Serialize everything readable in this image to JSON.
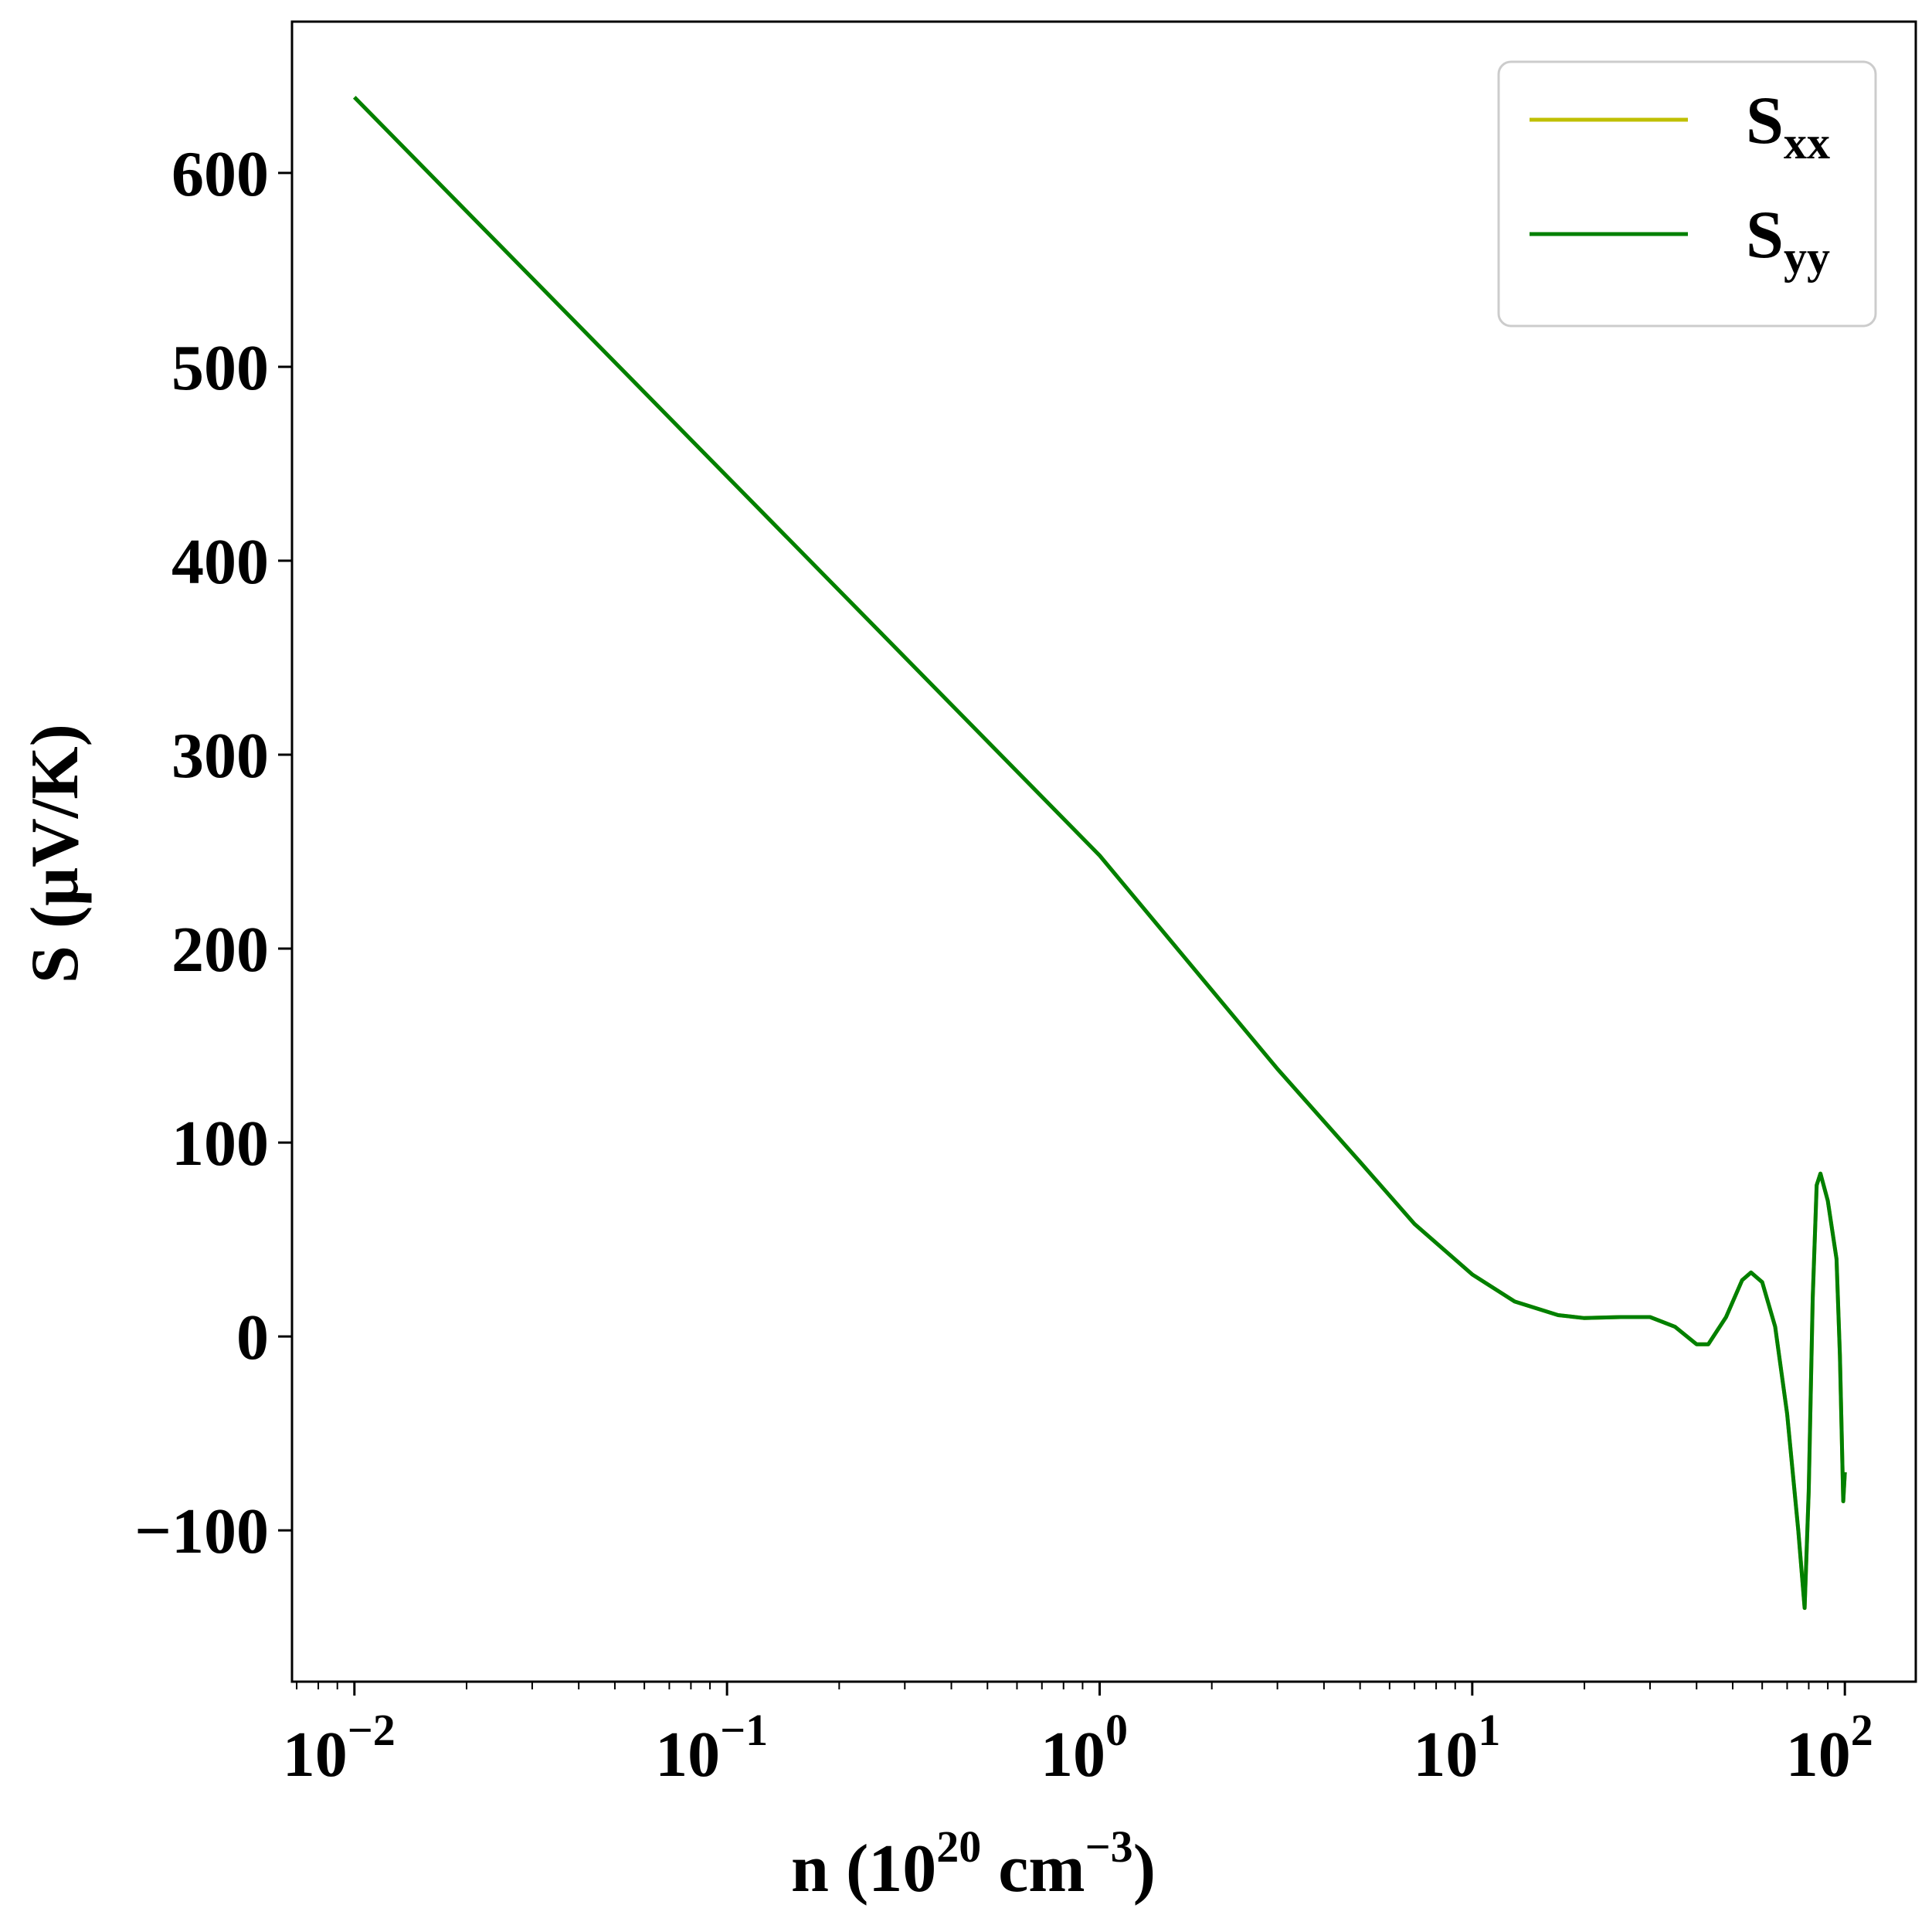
{
  "chart_data": {
    "type": "line",
    "xscale": "log",
    "xlim": [
      0.0068,
      155
    ],
    "ylim": [
      -178,
      678
    ],
    "grid": false,
    "legend_position": "top-right",
    "xlabel": {
      "base": "n (10",
      "sup1": "20",
      "mid": " cm",
      "sup2": "−3",
      "end": ")"
    },
    "ylabel": "S (μV/K)",
    "x_major_ticks": [
      {
        "value": 0.01,
        "base": "10",
        "exp": "−2"
      },
      {
        "value": 0.1,
        "base": "10",
        "exp": "−1"
      },
      {
        "value": 1,
        "base": "10",
        "exp": "0"
      },
      {
        "value": 10,
        "base": "10",
        "exp": "1"
      },
      {
        "value": 100,
        "base": "10",
        "exp": "2"
      }
    ],
    "y_ticks": [
      {
        "value": -100,
        "label": "−100"
      },
      {
        "value": 0,
        "label": "0"
      },
      {
        "value": 100,
        "label": "100"
      },
      {
        "value": 200,
        "label": "200"
      },
      {
        "value": 300,
        "label": "300"
      },
      {
        "value": 400,
        "label": "400"
      },
      {
        "value": 500,
        "label": "500"
      },
      {
        "value": 600,
        "label": "600"
      }
    ],
    "series": [
      {
        "name": "S",
        "sub": "xx",
        "color": "#bfbf00",
        "points": [
          [
            0.01,
            639
          ],
          [
            1,
            248
          ],
          [
            3,
            138
          ],
          [
            5,
            90
          ],
          [
            7,
            58
          ],
          [
            10,
            32
          ],
          [
            13,
            18
          ],
          [
            17,
            11
          ],
          [
            20,
            9.5
          ],
          [
            25,
            10
          ],
          [
            30,
            10
          ],
          [
            35,
            5
          ],
          [
            40,
            -4
          ],
          [
            43,
            -4
          ],
          [
            48,
            10
          ],
          [
            53,
            29
          ],
          [
            56,
            33
          ],
          [
            60,
            28
          ],
          [
            65,
            5
          ],
          [
            70,
            -40
          ],
          [
            75,
            -100
          ],
          [
            78,
            -140
          ],
          [
            80,
            -80
          ],
          [
            82,
            20
          ],
          [
            84,
            78
          ],
          [
            86,
            84
          ],
          [
            90,
            70
          ],
          [
            95,
            40
          ],
          [
            97,
            -10
          ],
          [
            99,
            -85
          ],
          [
            100,
            -70
          ]
        ]
      },
      {
        "name": "S",
        "sub": "yy",
        "color": "#008000",
        "points": [
          [
            0.01,
            639
          ],
          [
            1,
            248
          ],
          [
            3,
            138
          ],
          [
            5,
            90
          ],
          [
            7,
            58
          ],
          [
            10,
            32
          ],
          [
            13,
            18
          ],
          [
            17,
            11
          ],
          [
            20,
            9.5
          ],
          [
            25,
            10
          ],
          [
            30,
            10
          ],
          [
            35,
            5
          ],
          [
            40,
            -4
          ],
          [
            43,
            -4
          ],
          [
            48,
            10
          ],
          [
            53,
            29
          ],
          [
            56,
            33
          ],
          [
            60,
            28
          ],
          [
            65,
            5
          ],
          [
            70,
            -40
          ],
          [
            75,
            -100
          ],
          [
            78,
            -140
          ],
          [
            80,
            -80
          ],
          [
            82,
            20
          ],
          [
            84,
            78
          ],
          [
            86,
            84
          ],
          [
            90,
            70
          ],
          [
            95,
            40
          ],
          [
            97,
            -10
          ],
          [
            99,
            -85
          ],
          [
            100,
            -70
          ]
        ]
      }
    ]
  }
}
